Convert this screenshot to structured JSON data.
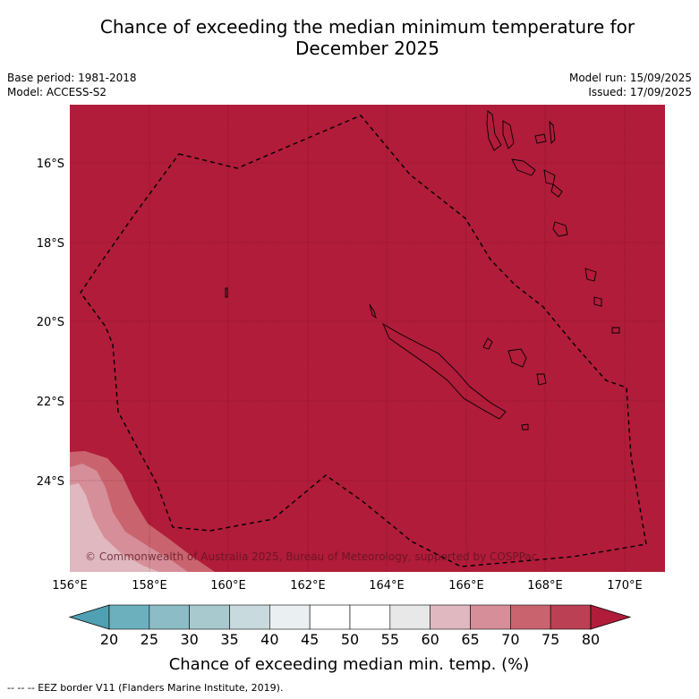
{
  "title_line1": "Chance of exceeding the median minimum temperature for",
  "title_line2": "December 2025",
  "base_period": "Base period: 1981-2018",
  "model": "Model: ACCESS-S2",
  "model_run": "Model run: 15/09/2025",
  "issued": "Issued: 17/09/2025",
  "lat_ticks": [
    "16°S",
    "18°S",
    "20°S",
    "22°S",
    "24°S"
  ],
  "lon_ticks": [
    "156°E",
    "158°E",
    "160°E",
    "162°E",
    "164°E",
    "166°E",
    "168°E",
    "170°E"
  ],
  "copyright": "© Commonwealth of Australia 2025, Bureau of Meteorology, supported by COSPPac",
  "colorbar": {
    "ticks": [
      "20",
      "25",
      "30",
      "35",
      "40",
      "45",
      "50",
      "55",
      "60",
      "65",
      "70",
      "75",
      "80"
    ],
    "label": "Chance of exceeding median min. temp. (%)",
    "colors": [
      "#4fa0b2",
      "#6cb0be",
      "#8cbcc6",
      "#a8cace",
      "#c8dadd",
      "#eaf0f1",
      "#ffffff",
      "#ffffff",
      "#e8e8e8",
      "#e0b8bf",
      "#d68e98",
      "#c9646f",
      "#bb4053",
      "#b01c3a"
    ]
  },
  "footer_note": "--  --  -- EEZ border V11 (Flanders Marine Institute, 2019).",
  "colors": {
    "main_fill": "#b01c3a",
    "band_70": "#c9646f",
    "band_65": "#d68e98"
  }
}
